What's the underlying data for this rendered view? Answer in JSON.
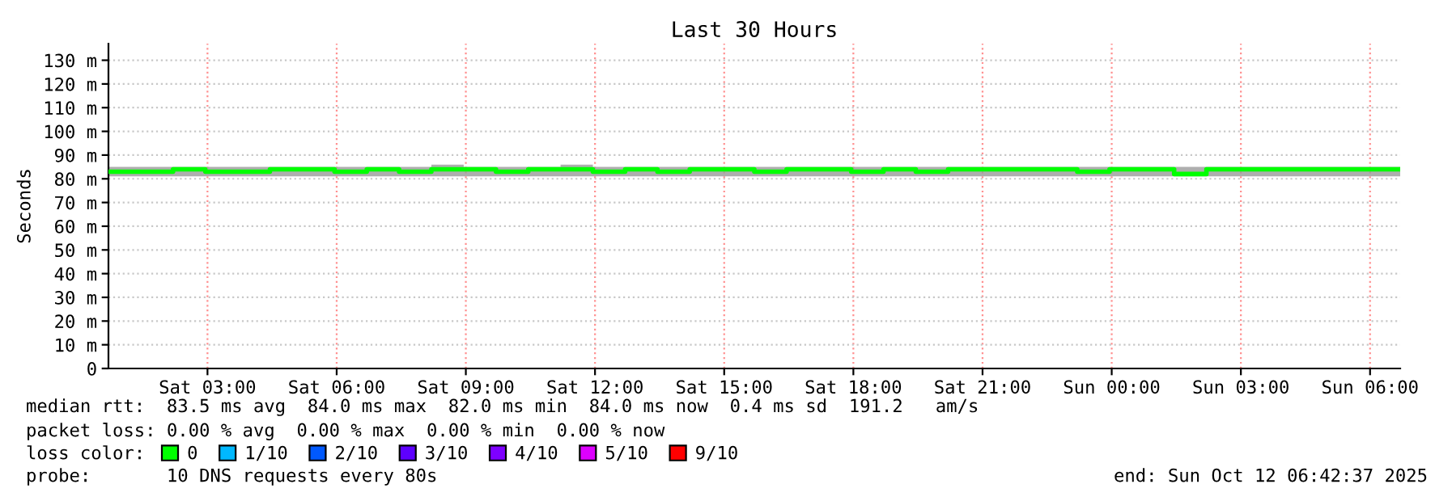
{
  "chart_data": {
    "type": "step",
    "title": "Last 30 Hours",
    "ylabel": "Seconds",
    "legend_title": "loss color:",
    "legend": "bottom",
    "grid": true,
    "x": [
      "2025-10-11T00:42",
      "2025-10-11T01:27",
      "2025-10-11T02:12",
      "2025-10-11T02:57",
      "2025-10-11T03:42",
      "2025-10-11T04:27",
      "2025-10-11T05:12",
      "2025-10-11T05:57",
      "2025-10-11T06:42",
      "2025-10-11T07:27",
      "2025-10-11T08:12",
      "2025-10-11T08:57",
      "2025-10-11T09:42",
      "2025-10-11T10:27",
      "2025-10-11T11:12",
      "2025-10-11T11:57",
      "2025-10-11T12:42",
      "2025-10-11T13:27",
      "2025-10-11T14:12",
      "2025-10-11T14:57",
      "2025-10-11T15:42",
      "2025-10-11T16:27",
      "2025-10-11T17:12",
      "2025-10-11T17:57",
      "2025-10-11T18:42",
      "2025-10-11T19:27",
      "2025-10-11T20:12",
      "2025-10-11T20:57",
      "2025-10-11T21:42",
      "2025-10-11T22:27",
      "2025-10-11T23:12",
      "2025-10-11T23:57",
      "2025-10-12T00:42",
      "2025-10-12T01:27",
      "2025-10-12T02:12",
      "2025-10-12T02:57",
      "2025-10-12T03:42",
      "2025-10-12T04:27",
      "2025-10-12T05:12",
      "2025-10-12T05:57",
      "2025-10-12T06:42"
    ],
    "series": [
      {
        "name": "0",
        "color": "#00ff00",
        "values": [
          83,
          83,
          84,
          83,
          83,
          84,
          84,
          83,
          84,
          83,
          84,
          84,
          83,
          84,
          84,
          83,
          84,
          83,
          84,
          84,
          83,
          84,
          84,
          83,
          84,
          83,
          84,
          84,
          84,
          84,
          83,
          84,
          84,
          82,
          84,
          84,
          84,
          84,
          84,
          84,
          84
        ],
        "lower": [
          81,
          81,
          81,
          81,
          81,
          81,
          81,
          81,
          81,
          81,
          81,
          81,
          81,
          81,
          81,
          81,
          81,
          81,
          81,
          81,
          81,
          81,
          81,
          81,
          81,
          81,
          81,
          81,
          81,
          81,
          81,
          81,
          81,
          81,
          81,
          81,
          81,
          81,
          81,
          81,
          81
        ],
        "upper": [
          85,
          85,
          85,
          85,
          85,
          85,
          85,
          85,
          85,
          85,
          86,
          85,
          85,
          85,
          86,
          85,
          85,
          85,
          85,
          85,
          85,
          85,
          85,
          85,
          85,
          85,
          85,
          85,
          85,
          85,
          85,
          85,
          85,
          85,
          85,
          85,
          85,
          85,
          85,
          85,
          85
        ]
      },
      {
        "name": "1/10",
        "color": "#00b8ff",
        "values": [
          null,
          null,
          null,
          null,
          null,
          null,
          null,
          null,
          null,
          null,
          null,
          null,
          null,
          null,
          null,
          null,
          null,
          null,
          null,
          null,
          null,
          null,
          null,
          null,
          null,
          null,
          null,
          null,
          null,
          null,
          null,
          null,
          null,
          null,
          null,
          null,
          null,
          null,
          null,
          null,
          null
        ]
      },
      {
        "name": "2/10",
        "color": "#0059ff",
        "values": [
          null,
          null,
          null,
          null,
          null,
          null,
          null,
          null,
          null,
          null,
          null,
          null,
          null,
          null,
          null,
          null,
          null,
          null,
          null,
          null,
          null,
          null,
          null,
          null,
          null,
          null,
          null,
          null,
          null,
          null,
          null,
          null,
          null,
          null,
          null,
          null,
          null,
          null,
          null,
          null,
          null
        ]
      },
      {
        "name": "3/10",
        "color": "#5e00ff",
        "values": [
          null,
          null,
          null,
          null,
          null,
          null,
          null,
          null,
          null,
          null,
          null,
          null,
          null,
          null,
          null,
          null,
          null,
          null,
          null,
          null,
          null,
          null,
          null,
          null,
          null,
          null,
          null,
          null,
          null,
          null,
          null,
          null,
          null,
          null,
          null,
          null,
          null,
          null,
          null,
          null,
          null
        ]
      },
      {
        "name": "4/10",
        "color": "#7e00ff",
        "values": [
          null,
          null,
          null,
          null,
          null,
          null,
          null,
          null,
          null,
          null,
          null,
          null,
          null,
          null,
          null,
          null,
          null,
          null,
          null,
          null,
          null,
          null,
          null,
          null,
          null,
          null,
          null,
          null,
          null,
          null,
          null,
          null,
          null,
          null,
          null,
          null,
          null,
          null,
          null,
          null,
          null
        ]
      },
      {
        "name": "5/10",
        "color": "#dd00ff",
        "values": [
          null,
          null,
          null,
          null,
          null,
          null,
          null,
          null,
          null,
          null,
          null,
          null,
          null,
          null,
          null,
          null,
          null,
          null,
          null,
          null,
          null,
          null,
          null,
          null,
          null,
          null,
          null,
          null,
          null,
          null,
          null,
          null,
          null,
          null,
          null,
          null,
          null,
          null,
          null,
          null,
          null
        ]
      },
      {
        "name": "9/10",
        "color": "#ff0000",
        "values": [
          null,
          null,
          null,
          null,
          null,
          null,
          null,
          null,
          null,
          null,
          null,
          null,
          null,
          null,
          null,
          null,
          null,
          null,
          null,
          null,
          null,
          null,
          null,
          null,
          null,
          null,
          null,
          null,
          null,
          null,
          null,
          null,
          null,
          null,
          null,
          null,
          null,
          null,
          null,
          null,
          null
        ]
      }
    ],
    "xlim": [
      "2025-10-11T00:42",
      "2025-10-12T06:42"
    ],
    "xticks": [
      {
        "value": "2025-10-11T03:00",
        "label": "Sat 03:00"
      },
      {
        "value": "2025-10-11T06:00",
        "label": "Sat 06:00"
      },
      {
        "value": "2025-10-11T09:00",
        "label": "Sat 09:00"
      },
      {
        "value": "2025-10-11T12:00",
        "label": "Sat 12:00"
      },
      {
        "value": "2025-10-11T15:00",
        "label": "Sat 15:00"
      },
      {
        "value": "2025-10-11T18:00",
        "label": "Sat 18:00"
      },
      {
        "value": "2025-10-11T21:00",
        "label": "Sat 21:00"
      },
      {
        "value": "2025-10-12T00:00",
        "label": "Sun 00:00"
      },
      {
        "value": "2025-10-12T03:00",
        "label": "Sun 03:00"
      },
      {
        "value": "2025-10-12T06:00",
        "label": "Sun 06:00"
      }
    ],
    "ylim": [
      0,
      137
    ],
    "yticks": [
      0,
      {
        "value": 10,
        "label": "10 m"
      },
      {
        "value": 20,
        "label": "20 m"
      },
      {
        "value": 30,
        "label": "30 m"
      },
      {
        "value": 40,
        "label": "40 m"
      },
      {
        "value": 50,
        "label": "50 m"
      },
      {
        "value": 60,
        "label": "60 m"
      },
      {
        "value": 70,
        "label": "70 m"
      },
      {
        "value": 80,
        "label": "80 m"
      },
      {
        "value": 90,
        "label": "90 m"
      },
      {
        "value": 100,
        "label": "100 m"
      },
      {
        "value": 110,
        "label": "110 m"
      },
      {
        "value": 120,
        "label": "120 m"
      },
      {
        "value": 130,
        "label": "130 m"
      }
    ],
    "annotations": [
      "median rtt:  83.5 ms avg  84.0 ms max  82.0 ms min  84.0 ms now  0.4 ms sd  191.2   am/s",
      "packet loss: 0.00 % avg  0.00 % max  0.00 % min  0.00 % now",
      "probe:       10 DNS requests every 80s",
      "end: Sun Oct 12 06:42:37 2025"
    ]
  }
}
